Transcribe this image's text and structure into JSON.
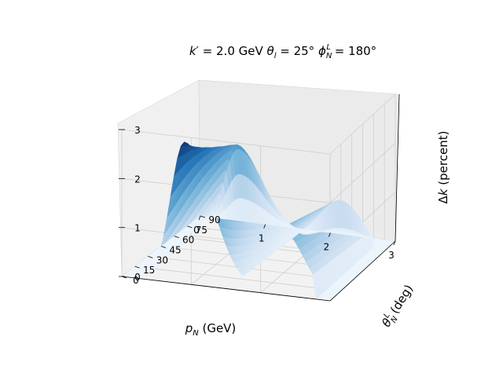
{
  "chart_data": {
    "type": "surface3d",
    "title": "k' = 2.0 GeV   θl = 25°   φNL = 180°",
    "title_parts": {
      "k": "k′ = 2.0 GeV",
      "theta": "θl = 25°",
      "phi": "φ NL = 180°"
    },
    "x_axis": {
      "label": "pN (GeV)",
      "label_parts": {
        "sym": "p",
        "sub": "N",
        "unit": " (GeV)"
      },
      "ticks": [
        "3",
        "2",
        "1",
        "0"
      ],
      "range": [
        0,
        3
      ]
    },
    "y_axis": {
      "label": "θNL (deg)",
      "label_parts": {
        "sym": "θ",
        "sub": "N",
        "sup": "L",
        "unit": " (deg)"
      },
      "ticks": [
        "0",
        "15",
        "30",
        "45",
        "60",
        "75",
        "90"
      ],
      "range": [
        0,
        90
      ]
    },
    "z_axis": {
      "label": "Δk (percent)",
      "label_parts": {
        "sym": "Δk",
        "unit": " (percent)"
      },
      "ticks": [
        "0",
        "1",
        "2",
        "3"
      ],
      "range": [
        0,
        3
      ]
    },
    "colormap": "Blues",
    "grid": true,
    "series_description_values": {
      "peak_value": 2.9,
      "peak_pN": 0.9,
      "peak_thetaNL": 0
    }
  }
}
